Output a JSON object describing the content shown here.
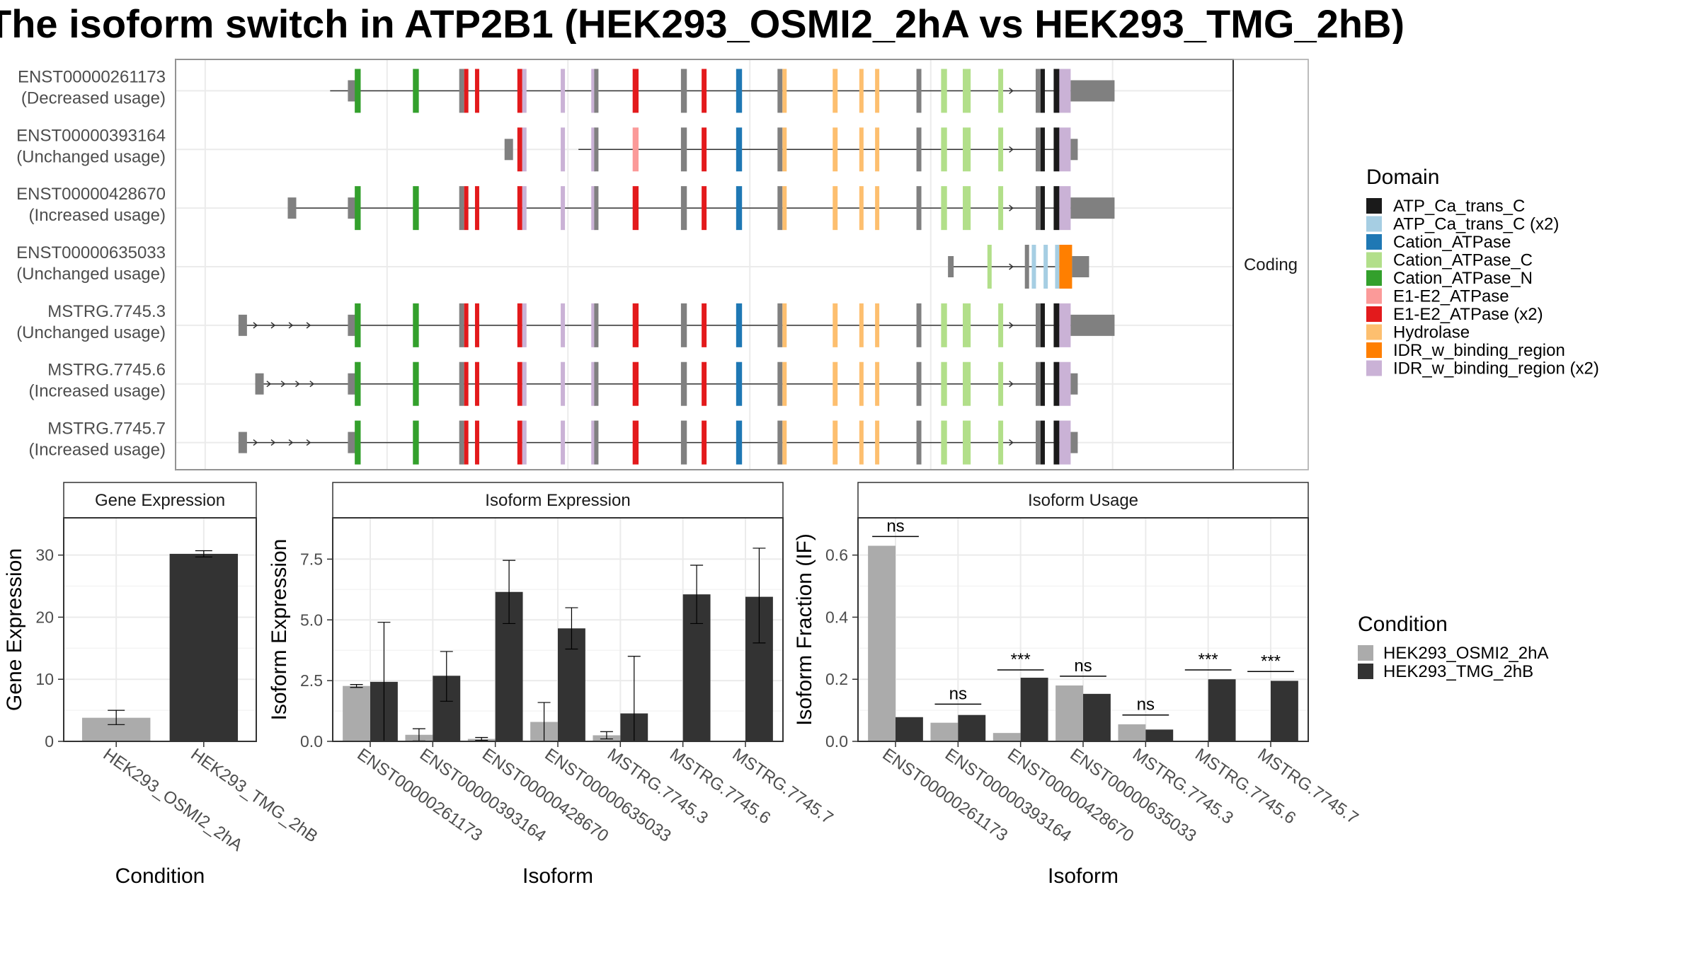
{
  "title": "The isoform switch in ATP2B1 (HEK293_OSMI2_2hA vs HEK293_TMG_2hB)",
  "colors": {
    "cond1": "#ababab",
    "cond2": "#333333",
    "utr": "#808080",
    "panel_border": "#333333",
    "grid": "#ebebeb",
    "strip_bg": "#ffffff"
  },
  "chart_data": [
    {
      "type": "gene-structure",
      "facet_label": "Coding",
      "legend_title": "Domain",
      "legend": [
        {
          "name": "ATP_Ca_trans_C",
          "color": "#1a1a1a"
        },
        {
          "name": "ATP_Ca_trans_C (x2)",
          "color": "#a6cee3"
        },
        {
          "name": "Cation_ATPase",
          "color": "#1f78b4"
        },
        {
          "name": "Cation_ATPase_C",
          "color": "#b2df8a"
        },
        {
          "name": "Cation_ATPase_N",
          "color": "#33a02c"
        },
        {
          "name": "E1-E2_ATPase",
          "color": "#fb9a99"
        },
        {
          "name": "E1-E2_ATPase (x2)",
          "color": "#e31a1c"
        },
        {
          "name": "Hydrolase",
          "color": "#fdbf6f"
        },
        {
          "name": "IDR_w_binding_region",
          "color": "#ff7f00"
        },
        {
          "name": "IDR_w_binding_region (x2)",
          "color": "#cab2d6"
        }
      ],
      "isoforms": [
        {
          "id": "ENST00000261173",
          "usage": "(Decreased usage)",
          "start": 0.108,
          "end": 1.0,
          "first_exon": "cds",
          "last_exon": "long",
          "variant": "a"
        },
        {
          "id": "ENST00000393164",
          "usage": "(Unchanged usage)",
          "start": 0.36,
          "end": 0.97,
          "first_exon": "short",
          "last_exon": "short",
          "variant": "b"
        },
        {
          "id": "ENST00000428670",
          "usage": "(Increased usage)",
          "start": 0.065,
          "end": 1.0,
          "first_exon": "utr",
          "last_exon": "long",
          "variant": "a"
        },
        {
          "id": "ENST00000635033",
          "usage": "(Unchanged usage)",
          "start": 0.738,
          "end": 0.98,
          "first_exon": "short",
          "last_exon": "short",
          "variant": "c"
        },
        {
          "id": "MSTRG.7745.3",
          "usage": "(Unchanged usage)",
          "start": 0.015,
          "end": 1.0,
          "first_exon": "utr",
          "last_exon": "long",
          "variant": "a"
        },
        {
          "id": "MSTRG.7745.6",
          "usage": "(Increased usage)",
          "start": 0.032,
          "end": 0.97,
          "first_exon": "utr",
          "last_exon": "short",
          "variant": "a"
        },
        {
          "id": "MSTRG.7745.7",
          "usage": "(Increased usage)",
          "start": 0.015,
          "end": 0.97,
          "first_exon": "utr",
          "last_exon": "short",
          "variant": "a"
        }
      ]
    },
    {
      "type": "bar",
      "strip": "Gene Expression",
      "xlabel": "Condition",
      "ylabel": "Gene Expression",
      "ylim": [
        0,
        36
      ],
      "yticks": [
        0,
        10,
        20,
        30
      ],
      "categories": [
        "HEK293_OSMI2_2hA",
        "HEK293_TMG_2hB"
      ],
      "values": [
        3.8,
        30.2
      ],
      "err_low": [
        2.7,
        29.7
      ],
      "err_high": [
        5.0,
        30.7
      ]
    },
    {
      "type": "bar",
      "strip": "Isoform Expression",
      "xlabel": "Isoform",
      "ylabel": "Isoform Expression",
      "ylim": [
        0,
        9.2
      ],
      "yticks": [
        0.0,
        2.5,
        5.0,
        7.5
      ],
      "ytick_labels": [
        "0.0",
        "2.5",
        "5.0",
        "7.5"
      ],
      "categories": [
        "ENST00000261173",
        "ENST00000393164",
        "ENST00000428670",
        "ENST00000635033",
        "MSTRG.7745.3",
        "MSTRG.7745.6",
        "MSTRG.7745.7"
      ],
      "series": [
        {
          "name": "HEK293_OSMI2_2hA",
          "values": [
            2.28,
            0.27,
            0.1,
            0.8,
            0.25,
            0.0,
            0.0
          ],
          "err_low": [
            2.22,
            0.02,
            0.04,
            0.0,
            0.1,
            0.0,
            0.0
          ],
          "err_high": [
            2.34,
            0.52,
            0.16,
            1.6,
            0.4,
            0.0,
            0.0
          ]
        },
        {
          "name": "HEK293_TMG_2hB",
          "values": [
            2.45,
            2.7,
            6.15,
            4.65,
            1.15,
            6.05,
            5.95
          ],
          "err_low": [
            0.0,
            1.65,
            4.85,
            3.8,
            0.0,
            4.85,
            4.05
          ],
          "err_high": [
            4.9,
            3.7,
            7.45,
            5.5,
            3.5,
            7.25,
            7.95
          ]
        }
      ]
    },
    {
      "type": "bar",
      "strip": "Isoform Usage",
      "xlabel": "Isoform",
      "ylabel": "Isoform Fraction (IF)",
      "ylim": [
        0,
        0.72
      ],
      "yticks": [
        0.0,
        0.2,
        0.4,
        0.6
      ],
      "ytick_labels": [
        "0.0",
        "0.2",
        "0.4",
        "0.6"
      ],
      "categories": [
        "ENST00000261173",
        "ENST00000393164",
        "ENST00000428670",
        "ENST00000635033",
        "MSTRG.7745.3",
        "MSTRG.7745.6",
        "MSTRG.7745.7"
      ],
      "series": [
        {
          "name": "HEK293_OSMI2_2hA",
          "values": [
            0.63,
            0.06,
            0.027,
            0.18,
            0.055,
            0.0,
            0.0
          ]
        },
        {
          "name": "HEK293_TMG_2hB",
          "values": [
            0.078,
            0.085,
            0.205,
            0.153,
            0.038,
            0.2,
            0.195
          ]
        }
      ],
      "significance": [
        "ns",
        "ns",
        "***",
        "ns",
        "ns",
        "***",
        "***"
      ],
      "sig_y": [
        0.66,
        0.12,
        0.23,
        0.21,
        0.085,
        0.23,
        0.225
      ]
    }
  ],
  "condition_legend": {
    "title": "Condition",
    "items": [
      "HEK293_OSMI2_2hA",
      "HEK293_TMG_2hB"
    ]
  }
}
